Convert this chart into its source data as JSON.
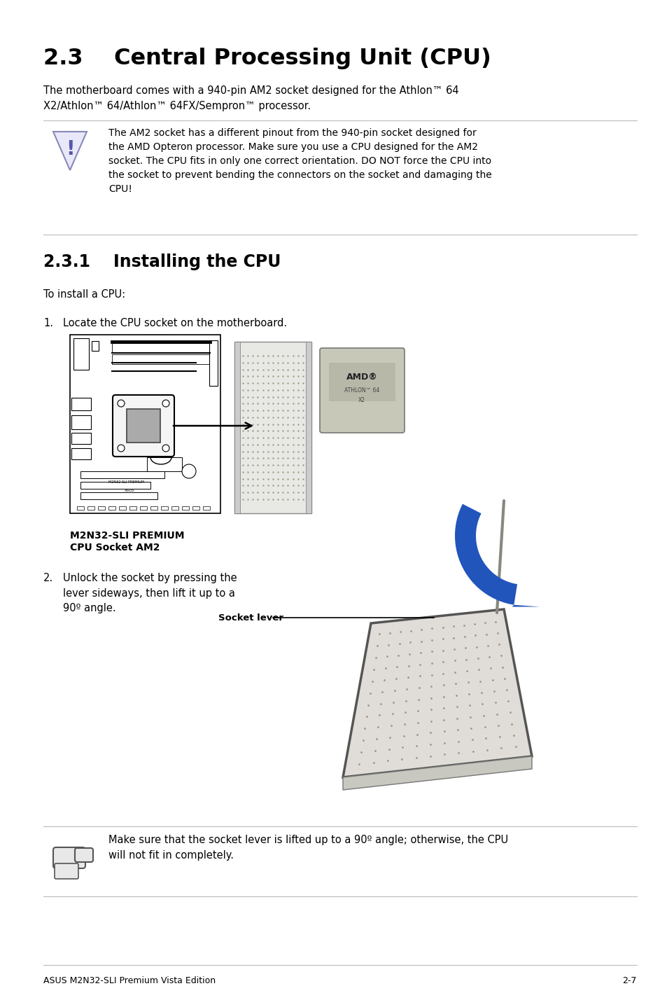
{
  "title": "2.3    Central Processing Unit (CPU)",
  "subtitle": "The motherboard comes with a 940-pin AM2 socket designed for the Athlon™ 64\nX2/Athlon™ 64/Athlon™ 64FX/Sempron™ processor.",
  "warning_text": "The AM2 socket has a different pinout from the 940-pin socket designed for\nthe AMD Opteron processor. Make sure you use a CPU designed for the AM2\nsocket. The CPU fits in only one correct orientation. DO NOT force the CPU into\nthe socket to prevent bending the connectors on the socket and damaging the\nCPU!",
  "section231": "2.3.1    Installing the CPU",
  "install_intro": "To install a CPU:",
  "step1_num": "1.",
  "step1_text": "Locate the CPU socket on the motherboard.",
  "step1_caption_line1": "M2N32-SLI PREMIUM",
  "step1_caption_line2": "CPU Socket AM2",
  "step2_num": "2.",
  "step2_text": "Unlock the socket by pressing the\nlever sideways, then lift it up to a\n90º angle.",
  "step2_label": "Socket lever",
  "note_text": "Make sure that the socket lever is lifted up to a 90º angle; otherwise, the CPU\nwill not fit in completely.",
  "footer_left": "ASUS M2N32-SLI Premium Vista Edition",
  "footer_right": "2-7",
  "bg_color": "#ffffff",
  "text_color": "#000000"
}
